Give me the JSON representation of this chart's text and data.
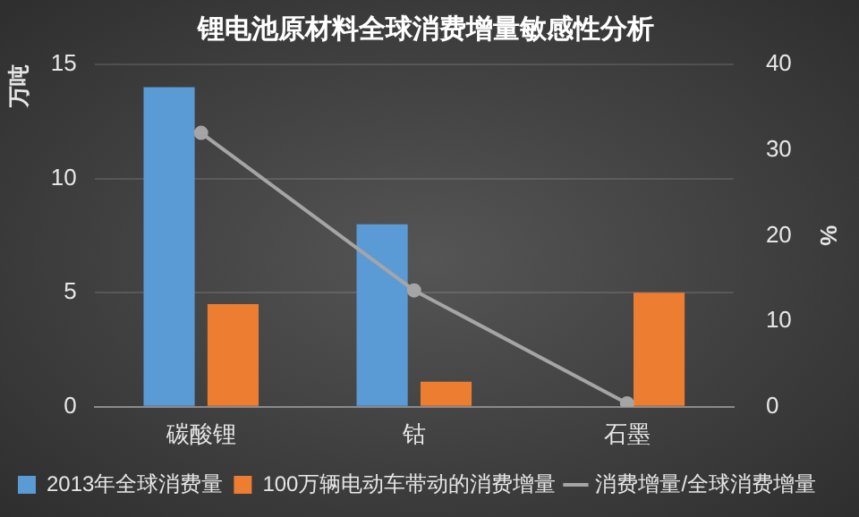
{
  "chart_data": {
    "type": "bar",
    "title": "锂电池原材料全球消费增量敏感性分析",
    "ylabel": "万吨",
    "y2label": "%",
    "categories": [
      "碳酸锂",
      "钴",
      "石墨"
    ],
    "series": [
      {
        "name": "2013年全球消费量",
        "color": "#5b9bd5",
        "values": [
          14.0,
          8.0,
          null
        ]
      },
      {
        "name": "100万辆电动车带动的消费增量",
        "color": "#ed7d31",
        "values": [
          4.5,
          1.1,
          5.0
        ]
      },
      {
        "name": "消费增量/全球消费增量",
        "color": "#a5a5a5",
        "type": "line",
        "axis": "y2",
        "values": [
          32,
          13.6,
          0.4
        ]
      }
    ],
    "ylim": [
      0,
      15
    ],
    "yticks": [
      0,
      5,
      10,
      15
    ],
    "y2lim": [
      0,
      40
    ],
    "y2ticks": [
      0,
      10,
      20,
      30,
      40
    ],
    "grid": "y",
    "legend": "bottom",
    "marker": "circle",
    "line_style": "solid"
  }
}
